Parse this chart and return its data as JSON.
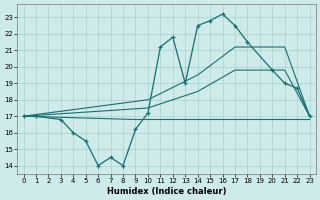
{
  "xlabel": "Humidex (Indice chaleur)",
  "bg_color": "#ceeaea",
  "grid_color": "#aacfcf",
  "line_color": "#1a6e6e",
  "xlim": [
    -0.5,
    23.5
  ],
  "ylim": [
    13.5,
    23.8
  ],
  "yticks": [
    14,
    15,
    16,
    17,
    18,
    19,
    20,
    21,
    22,
    23
  ],
  "xticks": [
    0,
    1,
    2,
    3,
    4,
    5,
    6,
    7,
    8,
    9,
    10,
    11,
    12,
    13,
    14,
    15,
    16,
    17,
    18,
    19,
    20,
    21,
    22,
    23
  ],
  "jagged_x": [
    0,
    1,
    3,
    4,
    5,
    6,
    7,
    8,
    9,
    10,
    11,
    12,
    13,
    14,
    15,
    16,
    17,
    18,
    20,
    21,
    22,
    23
  ],
  "jagged_y": [
    17,
    17,
    16.8,
    16.0,
    15.5,
    14.0,
    14.5,
    14.0,
    16.2,
    17.2,
    21.2,
    21.8,
    19.0,
    22.5,
    22.8,
    23.2,
    22.5,
    21.5,
    19.8,
    19.0,
    18.7,
    17.0
  ],
  "flat_x": [
    0,
    9,
    17,
    21,
    23
  ],
  "flat_y": [
    17.0,
    16.8,
    16.8,
    16.8,
    16.8
  ],
  "band_upper_x": [
    0,
    10,
    14,
    17,
    21,
    23
  ],
  "band_upper_y": [
    17.0,
    18.0,
    19.5,
    21.2,
    21.2,
    17.0
  ],
  "band_lower_x": [
    0,
    10,
    14,
    17,
    21,
    23
  ],
  "band_lower_y": [
    17.0,
    17.5,
    18.5,
    19.8,
    19.8,
    17.0
  ]
}
